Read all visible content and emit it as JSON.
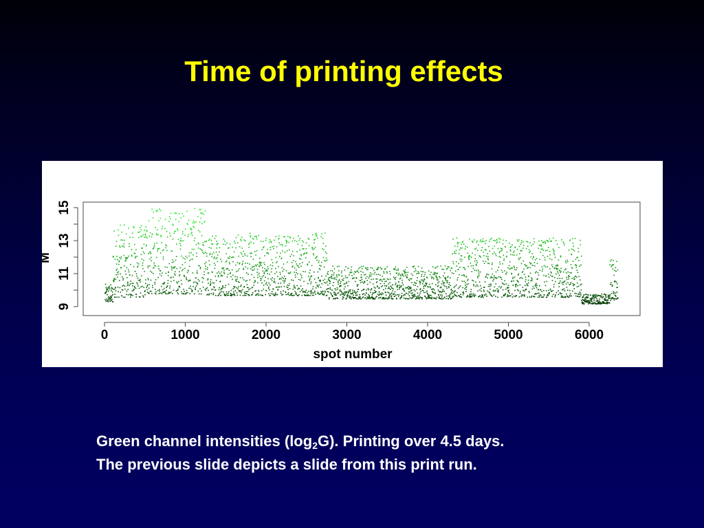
{
  "slide": {
    "title": "Time of printing effects",
    "caption_line1_before": "Green channel intensities (log",
    "caption_line1_sub": "2",
    "caption_line1_after": "G). Printing over 4.5 days.",
    "caption_line2": "The previous slide depicts a slide from this print run."
  },
  "colors": {
    "title": "#ffff00",
    "caption": "#ffffff",
    "point_bright": "#22ee22",
    "point_dark": "#002200"
  },
  "chart_data": {
    "type": "scatter",
    "xlabel": "spot number",
    "ylabel": "M",
    "xlim": [
      0,
      6400
    ],
    "ylim": [
      9,
      15
    ],
    "xticks": [
      0,
      1000,
      2000,
      3000,
      4000,
      5000,
      6000
    ],
    "yticks": [
      9,
      11,
      13,
      15
    ],
    "grid": false,
    "n_points": 6400,
    "segments": [
      {
        "x": [
          0,
          100
        ],
        "y_low": 9.3,
        "y_high": 10.4,
        "note": "low start"
      },
      {
        "x": [
          100,
          500
        ],
        "y_low": 9.6,
        "y_high": 14.0
      },
      {
        "x": [
          500,
          1250
        ],
        "y_low": 9.8,
        "y_high": 15.0
      },
      {
        "x": [
          1250,
          2750
        ],
        "y_low": 9.7,
        "y_high": 13.5
      },
      {
        "x": [
          2750,
          4300
        ],
        "y_low": 9.5,
        "y_high": 11.5
      },
      {
        "x": [
          4300,
          5900
        ],
        "y_low": 9.6,
        "y_high": 13.2
      },
      {
        "x": [
          5900,
          6250
        ],
        "y_low": 9.2,
        "y_high": 9.8
      },
      {
        "x": [
          6250,
          6350
        ],
        "y_low": 9.4,
        "y_high": 12.0
      }
    ]
  }
}
